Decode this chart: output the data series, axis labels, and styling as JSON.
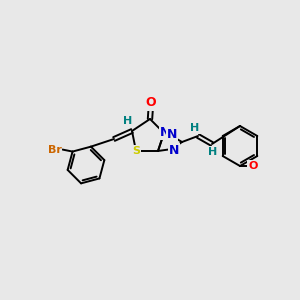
{
  "background_color": "#e8e8e8",
  "bond_color": "#000000",
  "atom_colors": {
    "Br": "#cc6600",
    "O": "#ff0000",
    "N": "#0000cc",
    "S": "#cccc00",
    "H": "#008080",
    "OMe": "#ff0000"
  },
  "lw": 1.4,
  "figsize": [
    3.0,
    3.0
  ],
  "dpi": 100
}
